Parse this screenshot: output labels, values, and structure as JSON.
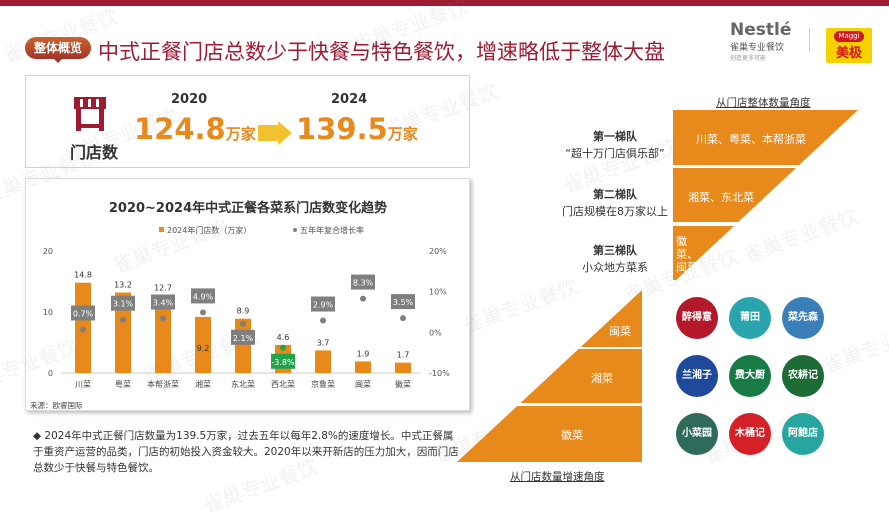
{
  "header": {
    "badge": "整体概览",
    "title": "中式正餐门店总数少于快餐与特色餐饮，增速略低于整体大盘",
    "logo_nestle": "Nestlé",
    "logo_nestle_sub": "雀巢专业餐饮",
    "logo_nestle_tag": "创造更多可能",
    "logo_maggi": "Maggi",
    "logo_maggi_cn": "美极"
  },
  "stats": {
    "label": "门店数",
    "icon": "store-icon",
    "from_year": "2020",
    "from_value": "124.8",
    "to_year": "2024",
    "to_value": "139.5",
    "unit": "万家"
  },
  "chart_data": {
    "type": "bar",
    "title": "2020~2024年中式正餐各菜系门店数变化趋势",
    "categories": [
      "川菜",
      "粤菜",
      "本帮浙菜",
      "湘菜",
      "东北菜",
      "西北菜",
      "京鲁菜",
      "闽菜",
      "徽菜"
    ],
    "series": [
      {
        "name": "2024年门店数（万家）",
        "type": "bar",
        "values": [
          14.8,
          13.2,
          12.7,
          9.2,
          8.9,
          4.6,
          3.7,
          1.9,
          1.7
        ],
        "color": "#e8891c"
      },
      {
        "name": "五年年复合增长率",
        "type": "scatter",
        "axis": "right",
        "values": [
          0.7,
          3.1,
          3.4,
          4.9,
          2.1,
          -3.8,
          2.9,
          8.3,
          3.5
        ],
        "labels": [
          "0.7%",
          "3.1%",
          "3.4%",
          "4.9%",
          "2.1%",
          "-3.8%",
          "2.9%",
          "8.3%",
          "3.5%"
        ],
        "color": "#7f7f7f"
      }
    ],
    "ylim": [
      0,
      20
    ],
    "yticks": [
      "0",
      "10",
      "20"
    ],
    "y2lim": [
      -10,
      20
    ],
    "y2ticks": [
      "-10%",
      "0%",
      "10%",
      "20%"
    ],
    "legend": "top",
    "grid": false,
    "negative_color": "#22a34a"
  },
  "source": "来源：欧睿国际",
  "note": "2024年中式正餐门店数量为139.5万家，过去五年以每年2.8%的速度增长。中式正餐属于重资产运营的品类，门店的初始投入资金较大。2020年以来开新店的压力加大，因而门店总数少于快餐与特色餐饮。",
  "tiers": {
    "heading": "从门店整体数量角度",
    "items": [
      {
        "name": "第一梯队",
        "desc": "“超十万门店俱乐部”",
        "cuisines": "川菜、粤菜、本帮浙菜"
      },
      {
        "name": "第二梯队",
        "desc": "门店规模在8万家以上",
        "cuisines": "湘菜、东北菜"
      },
      {
        "name": "第三梯队",
        "desc": "小众地方菜系",
        "cuisines": "徽菜、闽菜"
      }
    ]
  },
  "growth": {
    "heading": "从门店数量增速角度",
    "items": [
      "闽菜",
      "湘菜",
      "徽菜"
    ]
  },
  "brands": [
    {
      "name": "醉得意",
      "color": "#b3192a"
    },
    {
      "name": "莆田",
      "color": "#2aa5ad"
    },
    {
      "name": "菜先森",
      "color": "#3a7fb8"
    },
    {
      "name": "兰湘子",
      "color": "#1f4a9c"
    },
    {
      "name": "费大厨",
      "color": "#187a45"
    },
    {
      "name": "农耕记",
      "color": "#1e6c35"
    },
    {
      "name": "小菜园",
      "color": "#2e6b5a"
    },
    {
      "name": "木桶记",
      "color": "#d42027"
    },
    {
      "name": "阿鲍店",
      "color": "#27a6a0"
    }
  ],
  "watermark": "雀巢专业餐饮"
}
